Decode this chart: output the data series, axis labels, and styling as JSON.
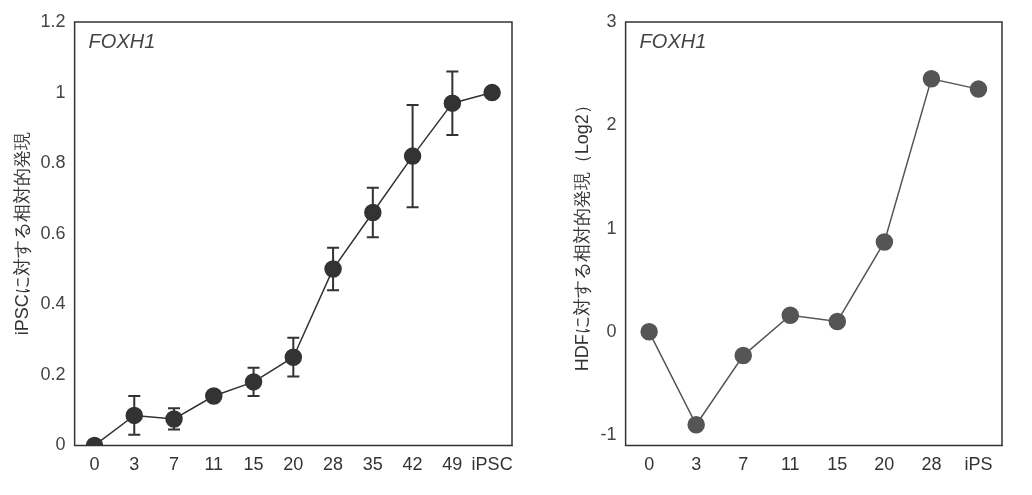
{
  "chart_data": [
    {
      "type": "line",
      "title": "FOXH1",
      "ylabel": "iPSCに対する相対的発現",
      "categories": [
        "0",
        "3",
        "7",
        "11",
        "15",
        "20",
        "28",
        "35",
        "42",
        "49",
        "iPSC"
      ],
      "values": [
        0,
        0.085,
        0.075,
        0.14,
        0.18,
        0.25,
        0.5,
        0.66,
        0.82,
        0.97,
        1
      ],
      "errors": [
        null,
        0.055,
        0.03,
        null,
        0.04,
        0.055,
        0.06,
        0.07,
        0.145,
        0.09,
        null
      ],
      "color": "#333333",
      "marker": "circle",
      "ylim": [
        0,
        1.2
      ],
      "yticks": [
        0,
        0.2,
        0.4,
        0.6,
        0.8,
        1,
        1.2
      ],
      "grid": false
    },
    {
      "type": "line",
      "title": "FOXH1",
      "ylabel": "HDFに対する相対的発現（Log2）",
      "categories": [
        "0",
        "3",
        "7",
        "11",
        "15",
        "20",
        "28",
        "iPS"
      ],
      "values": [
        0,
        -0.9,
        -0.23,
        0.16,
        0.1,
        0.87,
        2.45,
        2.35
      ],
      "color": "#555555",
      "marker": "circle",
      "ylim": [
        -1.1,
        3
      ],
      "yticks": [
        -1,
        0,
        1,
        2,
        3
      ],
      "grid": false
    }
  ]
}
